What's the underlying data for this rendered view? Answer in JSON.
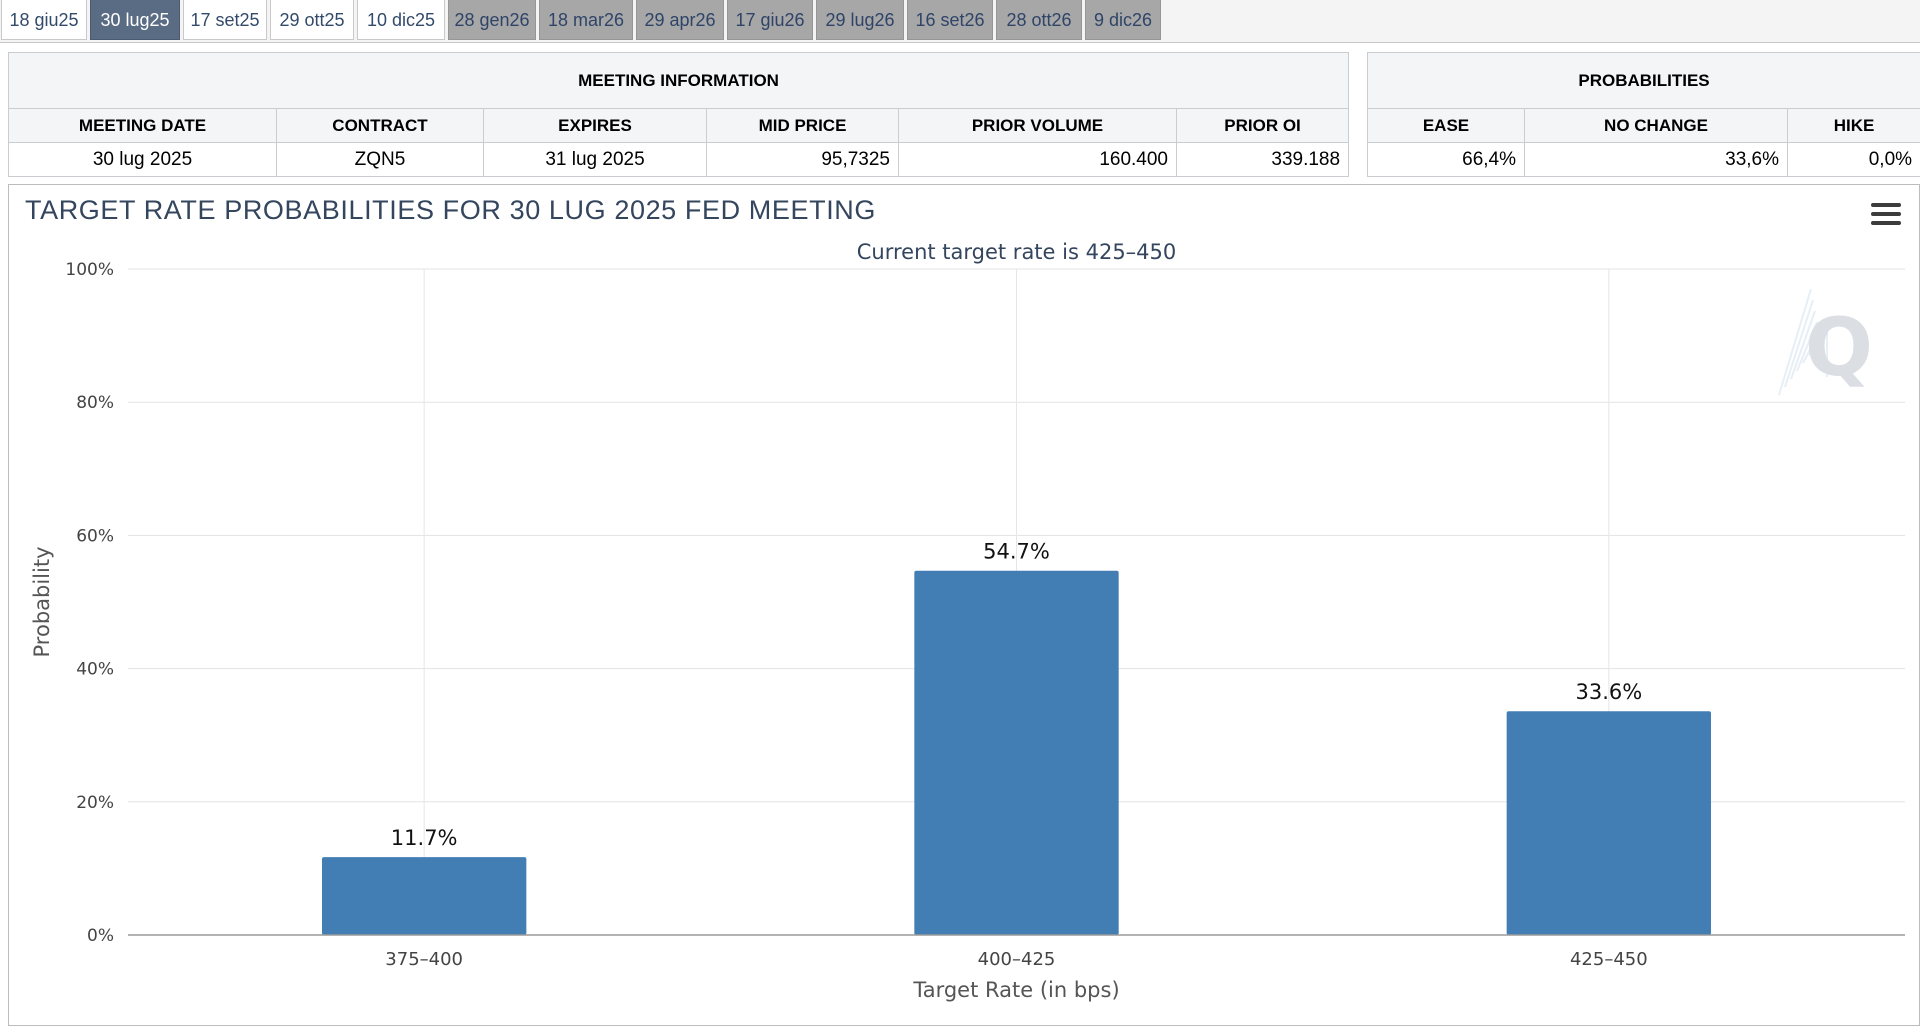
{
  "tabs": [
    {
      "label": "18 giu25",
      "state": "light"
    },
    {
      "label": "30 lug25",
      "state": "active"
    },
    {
      "label": "17 set25",
      "state": "light"
    },
    {
      "label": "29 ott25",
      "state": "light"
    },
    {
      "label": "10 dic25",
      "state": "light"
    },
    {
      "label": "28 gen26",
      "state": "dark"
    },
    {
      "label": "18 mar26",
      "state": "dark"
    },
    {
      "label": "29 apr26",
      "state": "dark"
    },
    {
      "label": "17 giu26",
      "state": "dark"
    },
    {
      "label": "29 lug26",
      "state": "dark"
    },
    {
      "label": "16 set26",
      "state": "dark"
    },
    {
      "label": "28 ott26",
      "state": "dark"
    },
    {
      "label": "9 dic26",
      "state": "dark"
    }
  ],
  "meeting_info": {
    "title": "MEETING INFORMATION",
    "headers": {
      "meeting_date": "MEETING DATE",
      "contract": "CONTRACT",
      "expires": "EXPIRES",
      "mid_price": "MID PRICE",
      "prior_volume": "PRIOR VOLUME",
      "prior_oi": "PRIOR OI"
    },
    "values": {
      "meeting_date": "30 lug 2025",
      "contract": "ZQN5",
      "expires": "31 lug 2025",
      "mid_price": "95,7325",
      "prior_volume": "160.400",
      "prior_oi": "339.188"
    }
  },
  "probabilities": {
    "title": "PROBABILITIES",
    "headers": {
      "ease": "EASE",
      "no_change": "NO CHANGE",
      "hike": "HIKE"
    },
    "values": {
      "ease": "66,4%",
      "no_change": "33,6%",
      "hike": "0,0%"
    }
  },
  "chart": {
    "title": "TARGET RATE PROBABILITIES FOR 30 LUG 2025 FED MEETING",
    "menu_icon": "hamburger-menu-icon",
    "watermark_icon": "q-logo-watermark",
    "bar_color": "#427eb4"
  },
  "chart_data": {
    "type": "bar",
    "title": "TARGET RATE PROBABILITIES FOR 30 LUG 2025 FED MEETING",
    "subtitle": "Current target rate is 425–450",
    "categories": [
      "375–400",
      "400–425",
      "425–450"
    ],
    "values": [
      11.7,
      54.7,
      33.6
    ],
    "data_labels": [
      "11.7%",
      "54.7%",
      "33.6%"
    ],
    "xlabel": "Target Rate (in bps)",
    "ylabel": "Probability",
    "ylim": [
      0,
      100
    ],
    "yticks": [
      "0%",
      "20%",
      "40%",
      "60%",
      "80%",
      "100%"
    ],
    "grid": true,
    "legend": "none"
  }
}
